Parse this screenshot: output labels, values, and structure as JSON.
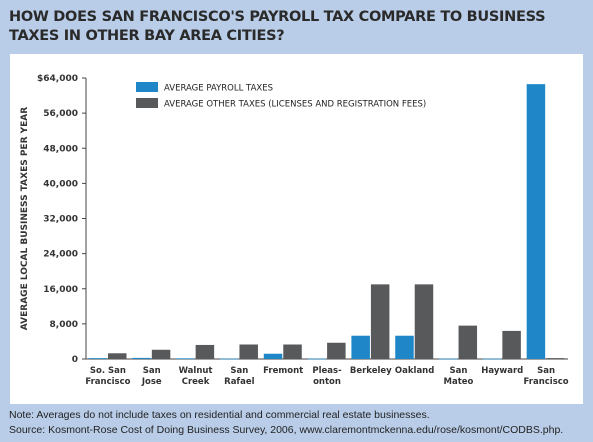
{
  "header": {
    "title": "HOW DOES SAN FRANCISCO'S PAYROLL TAX COMPARE TO BUSINESS TAXES IN OTHER BAY AREA CITIES?"
  },
  "footer": {
    "note": "Note: Averages do not include taxes on residential and commercial real estate businesses.",
    "source": "Source: Kosmont-Rose Cost of Doing Business Survey, 2006, www.claremontmckenna.edu/rose/kosmont/CODBS.php."
  },
  "chart_data": {
    "type": "bar",
    "title": "HOW DOES SAN FRANCISCO'S PAYROLL TAX COMPARE TO BUSINESS TAXES IN OTHER BAY AREA CITIES?",
    "ylabel": "AVERAGE LOCAL BUSINESS TAXES PER YEAR",
    "xlabel": "",
    "ylim": [
      0,
      64000
    ],
    "yticks": [
      0,
      8000,
      16000,
      24000,
      32000,
      40000,
      48000,
      56000,
      64000
    ],
    "ytick_labels": [
      "0",
      "8,000",
      "16,000",
      "24,000",
      "32,000",
      "40,000",
      "48,000",
      "56,000",
      "$64,000"
    ],
    "grid": false,
    "legend_position": "top-left",
    "categories": [
      [
        "So. San",
        "Francisco"
      ],
      [
        "San",
        "Jose"
      ],
      [
        "Walnut",
        "Creek"
      ],
      [
        "San",
        "Rafael"
      ],
      [
        "Fremont"
      ],
      [
        "Pleas-",
        "onton"
      ],
      [
        "Berkeley"
      ],
      [
        "Oakland"
      ],
      [
        "San",
        "Mateo"
      ],
      [
        "Hayward"
      ],
      [
        "San",
        "Francisco"
      ]
    ],
    "series": [
      {
        "name": "AVERAGE PAYROLL TAXES",
        "color": "#1f87c8",
        "values": [
          200,
          250,
          150,
          100,
          1200,
          100,
          5300,
          5300,
          100,
          100,
          62600
        ]
      },
      {
        "name": "AVERAGE OTHER TAXES (LICENSES AND REGISTRATION FEES)",
        "color": "#58595b",
        "values": [
          1300,
          2100,
          3200,
          3300,
          3300,
          3700,
          17000,
          17000,
          7600,
          6400,
          200
        ]
      }
    ]
  }
}
